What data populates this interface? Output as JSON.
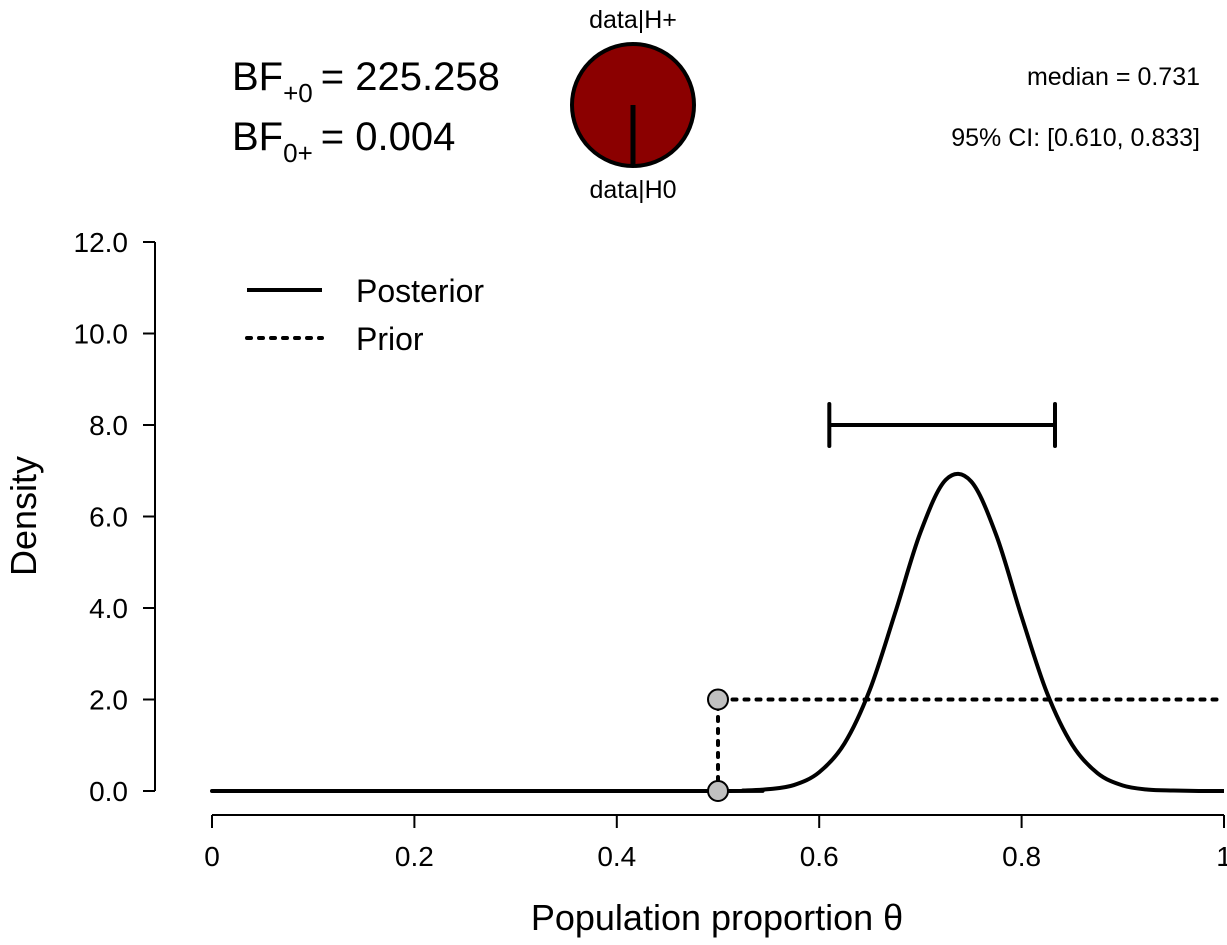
{
  "chart_data": {
    "type": "line",
    "xlabel": "Population proportion θ",
    "ylabel": "Density",
    "xlim": [
      0,
      1
    ],
    "ylim": [
      0,
      12
    ],
    "x_ticks": [
      "0",
      "0.2",
      "0.4",
      "0.6",
      "0.8",
      "1"
    ],
    "x_tick_values": [
      0,
      0.2,
      0.4,
      0.6,
      0.8,
      1
    ],
    "y_ticks": [
      "0.0",
      "2.0",
      "4.0",
      "6.0",
      "8.0",
      "10.0",
      "12.0"
    ],
    "y_tick_values": [
      0,
      2,
      4,
      6,
      8,
      10,
      12
    ],
    "grid": false,
    "legend": {
      "placement": "top-left",
      "entries": [
        {
          "label": "Posterior",
          "style": "solid"
        },
        {
          "label": "Prior",
          "style": "dotted"
        }
      ]
    },
    "series": [
      {
        "name": "Posterior",
        "style": "solid",
        "x": [
          0,
          0.5,
          0.525,
          0.55,
          0.575,
          0.6,
          0.625,
          0.65,
          0.675,
          0.7,
          0.725,
          0.75,
          0.775,
          0.8,
          0.825,
          0.85,
          0.875,
          0.9,
          0.925,
          0.95,
          0.975,
          1
        ],
        "y": [
          0,
          0,
          0.01,
          0.04,
          0.13,
          0.41,
          1.04,
          2.21,
          3.89,
          5.65,
          6.8,
          6.77,
          5.59,
          3.81,
          2.15,
          1.01,
          0.39,
          0.12,
          0.03,
          0.01,
          0,
          0
        ]
      },
      {
        "name": "Prior",
        "style": "dotted",
        "x": [
          0,
          0.5,
          0.5,
          1
        ],
        "y": [
          0,
          0,
          2,
          2
        ]
      }
    ],
    "points": [
      {
        "x": 0.5,
        "y": 2
      },
      {
        "x": 0.5,
        "y": 0
      }
    ],
    "credible_interval": {
      "lower": 0.61,
      "upper": 0.833,
      "y": 8.0
    },
    "point_color": "#c0c0c0"
  },
  "header": {
    "bf10_label": "BF",
    "bf10_sub": "+0",
    "bf10_value": "= 225.258",
    "bf01_label": "BF",
    "bf01_sub": "0+",
    "bf01_value": "= 0.004",
    "pie_top_label": "data|H+",
    "pie_bottom_label": "data|H0",
    "pie_color": "#8b0000",
    "pie_fraction_h1": 0.996,
    "median_text": "median = 0.731",
    "ci_text": "95% CI: [0.610, 0.833]"
  }
}
